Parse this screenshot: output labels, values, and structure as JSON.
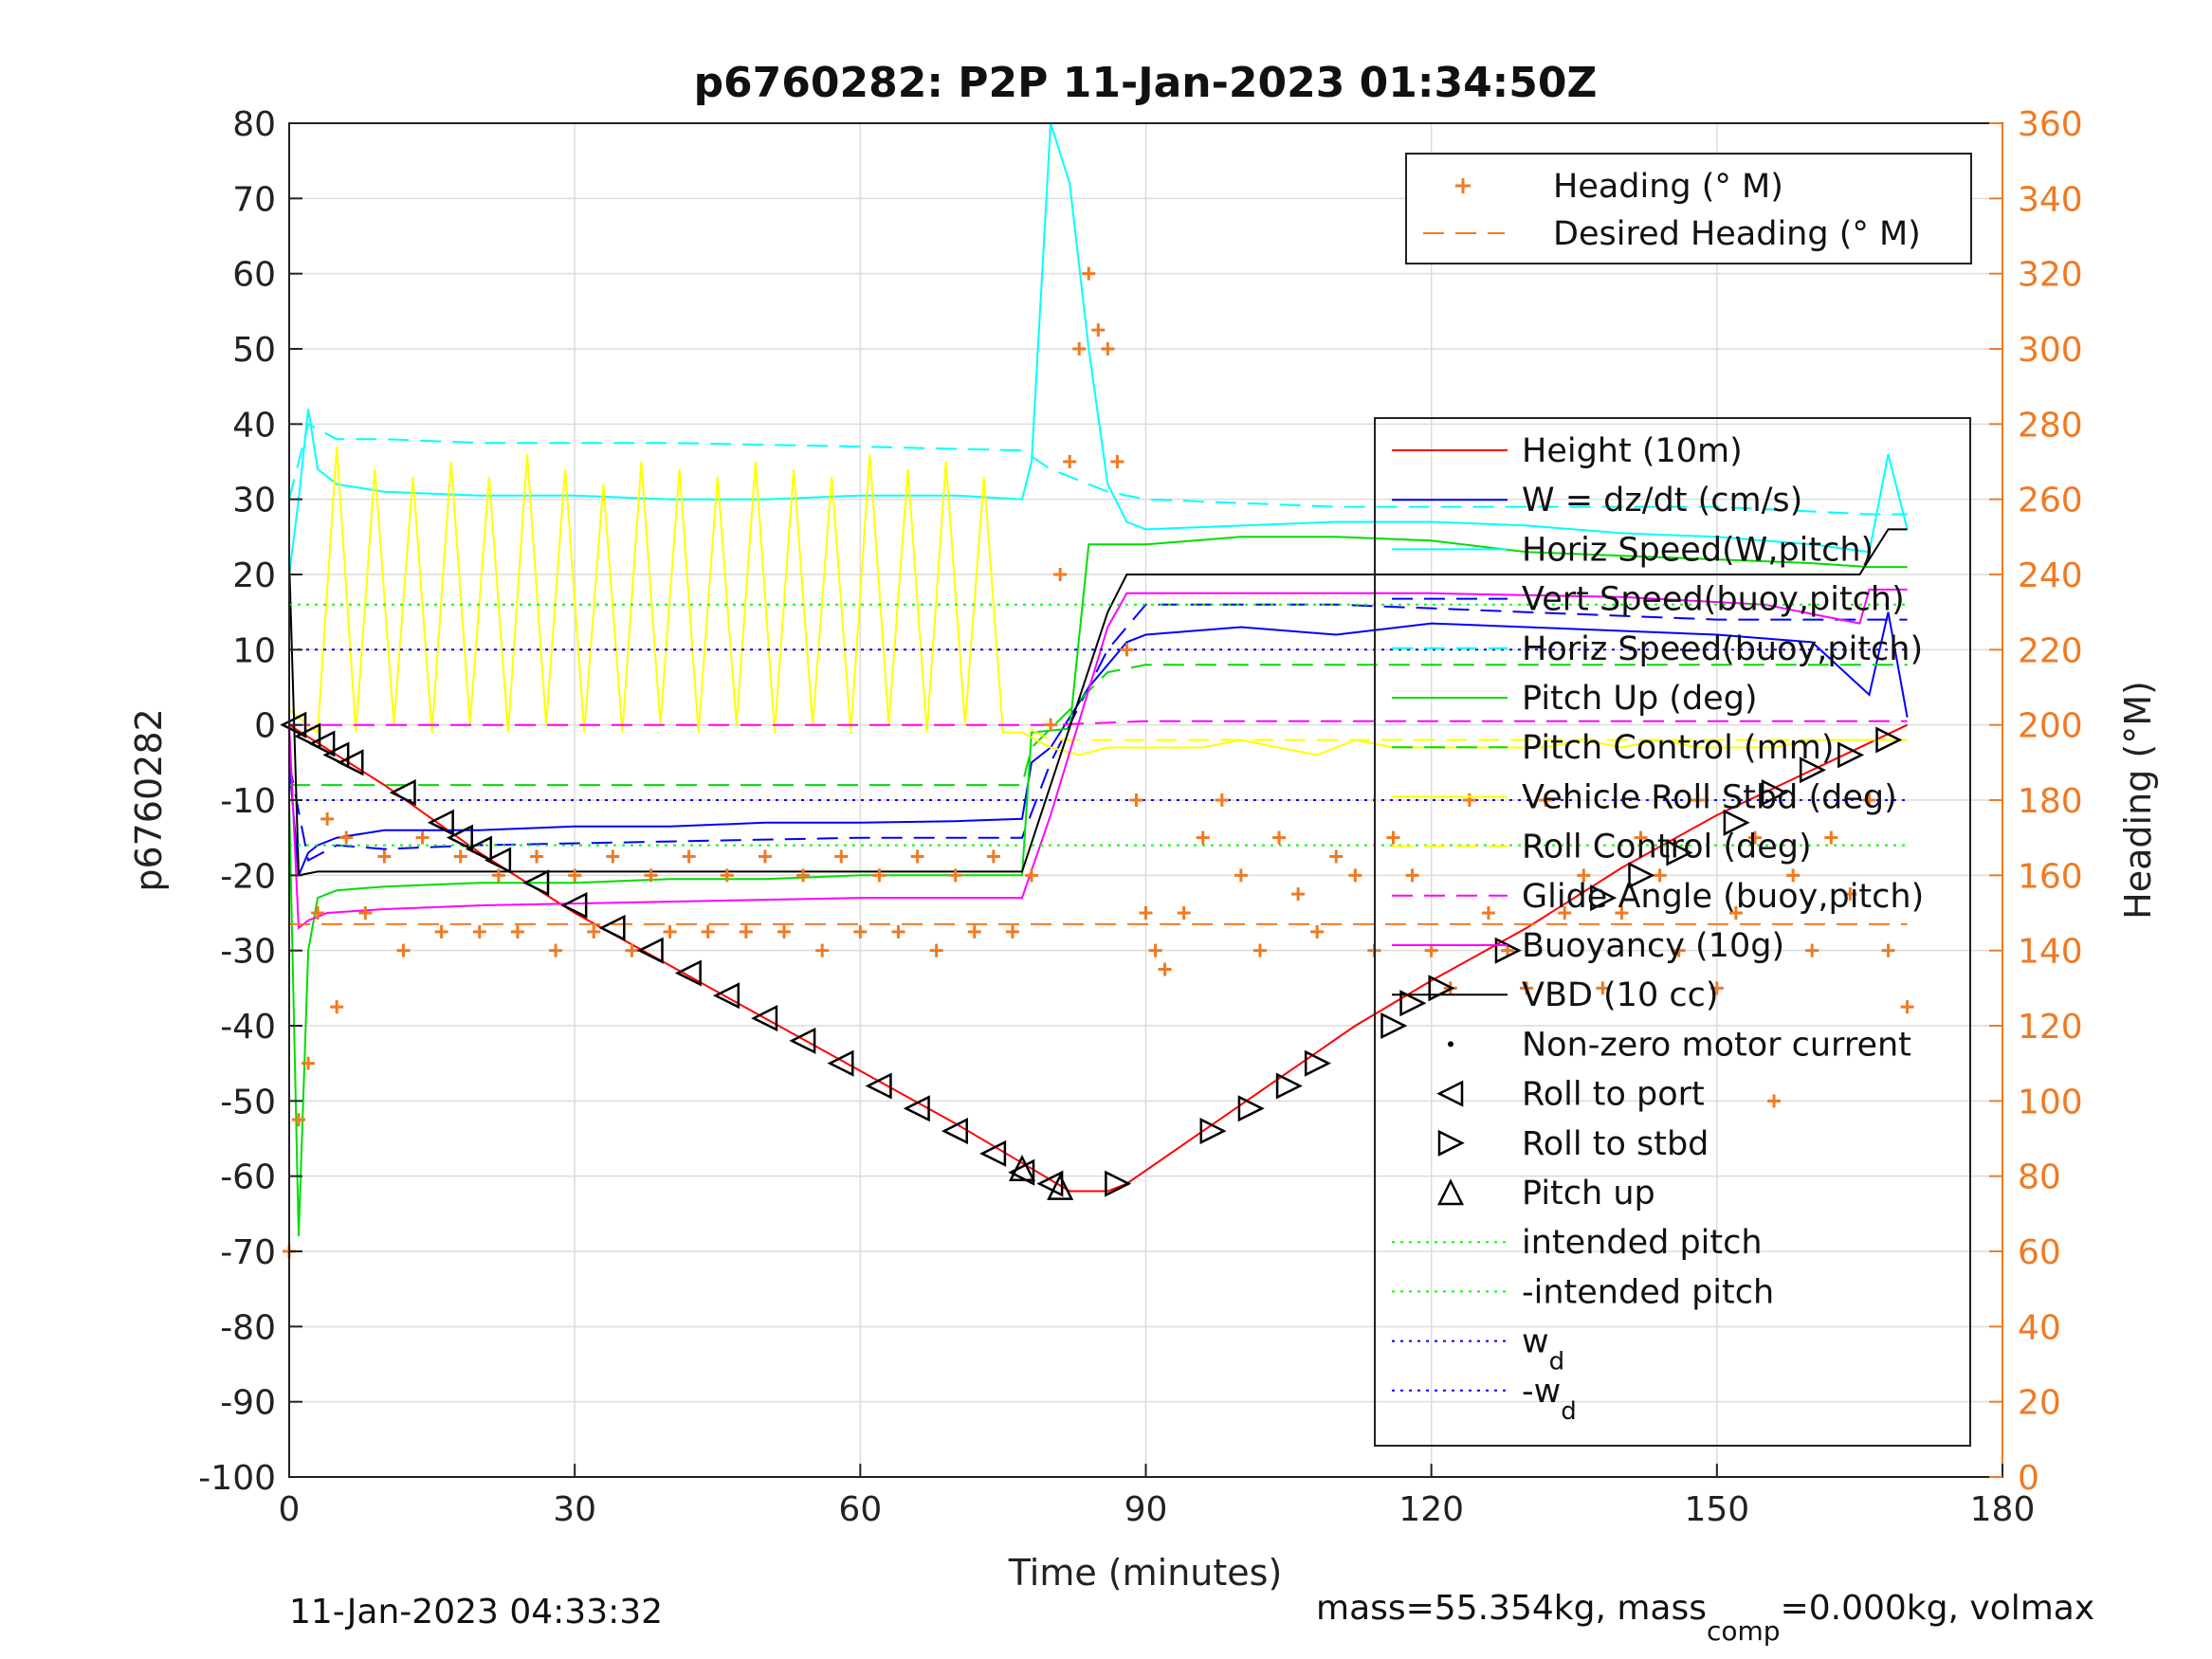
{
  "chart_data": {
    "type": "line",
    "title": "p6760282: P2P 11-Jan-2023 01:34:50Z",
    "xlabel": "Time (minutes)",
    "ylabel": "p6760282",
    "ylabel_right": "Heading (°M)",
    "xlim": [
      0,
      180
    ],
    "ylim": [
      -100,
      80
    ],
    "ylim_right": [
      0,
      360
    ],
    "x_ticks": [
      0,
      30,
      60,
      90,
      120,
      150,
      180
    ],
    "x_tick_labels": [
      "0",
      "30",
      "60",
      "90",
      "120",
      "150",
      "180"
    ],
    "y_ticks": [
      80,
      70,
      60,
      50,
      40,
      30,
      20,
      10,
      0,
      -10,
      -20,
      -30,
      -40,
      -50,
      -60,
      -70,
      -80,
      -90,
      -100
    ],
    "y_tick_labels": [
      "80",
      "70",
      "60",
      "50",
      "40",
      "30",
      "20",
      "10",
      "0",
      "-10",
      "-20",
      "-30",
      "-40",
      "-50",
      "-60",
      "-70",
      "-80",
      "-90",
      "-100"
    ],
    "y_ticks_right": [
      360,
      340,
      320,
      300,
      280,
      260,
      240,
      220,
      200,
      180,
      160,
      140,
      120,
      100,
      80,
      60,
      40,
      20,
      0
    ],
    "y_tick_labels_right": [
      "360",
      "340",
      "320",
      "300",
      "280",
      "260",
      "240",
      "220",
      "200",
      "180",
      "160",
      "140",
      "120",
      "100",
      "80",
      "60",
      "40",
      "20",
      "0"
    ],
    "grid": true,
    "legend_top": [
      {
        "label": "Heading (° M)",
        "color": "#f07a22",
        "style": "plus"
      },
      {
        "label": "Desired Heading (° M)",
        "color": "#f07a22",
        "style": "dashed"
      }
    ],
    "legend_main": [
      {
        "label": "Height (10m)",
        "color": "#ff0000",
        "style": "solid"
      },
      {
        "label": "W = dz/dt (cm/s)",
        "color": "#0000ff",
        "style": "solid"
      },
      {
        "label": "Horiz Speed(W,pitch)",
        "color": "#00ffff",
        "style": "solid"
      },
      {
        "label": "Vert Speed(buoy,pitch)",
        "color": "#0000ff",
        "style": "dashed"
      },
      {
        "label": "Horiz Speed(buoy,pitch)",
        "color": "#00ffff",
        "style": "dashed"
      },
      {
        "label": "Pitch Up (deg)",
        "color": "#00dd00",
        "style": "solid"
      },
      {
        "label": "Pitch Control (mm)",
        "color": "#00dd00",
        "style": "dashed"
      },
      {
        "label": "Vehicle Roll Stbd (deg)",
        "color": "#ffff00",
        "style": "solid"
      },
      {
        "label": "Roll Control (deg)",
        "color": "#ffff00",
        "style": "dashed"
      },
      {
        "label": "Glide Angle (buoy,pitch)",
        "color": "#ff00ff",
        "style": "dashed"
      },
      {
        "label": "Buoyancy (10g)",
        "color": "#ff00ff",
        "style": "solid"
      },
      {
        "label": "VBD (10 cc)",
        "color": "#000000",
        "style": "solid"
      },
      {
        "label": "Non-zero motor current",
        "color": "#000000",
        "style": "dot"
      },
      {
        "label": "Roll to port",
        "color": "#000000",
        "style": "tri-left"
      },
      {
        "label": "Roll to stbd",
        "color": "#000000",
        "style": "tri-right"
      },
      {
        "label": "Pitch up",
        "color": "#000000",
        "style": "tri-up"
      },
      {
        "label": "intended pitch",
        "color": "#00ff00",
        "style": "dotted"
      },
      {
        "label": "-intended pitch",
        "color": "#00ff00",
        "style": "dotted"
      },
      {
        "label": "w_d",
        "color": "#0000ff",
        "style": "dotted"
      },
      {
        "label": "-w_d",
        "color": "#0000ff",
        "style": "dotted"
      }
    ],
    "series": [
      {
        "name": "Height (10m)",
        "color": "#ff0000",
        "x": [
          0,
          10,
          20,
          30,
          40,
          50,
          60,
          70,
          78,
          82,
          86,
          88,
          96,
          104,
          112,
          120,
          130,
          140,
          150,
          160,
          170
        ],
        "y": [
          0,
          -8,
          -17,
          -25,
          -32,
          -39,
          -46,
          -53,
          -59,
          -62,
          -62,
          -61,
          -54,
          -47,
          -40,
          -34,
          -27,
          -19,
          -12,
          -6,
          0
        ]
      },
      {
        "name": "W = dz/dt (cm/s)",
        "color": "#0000ff",
        "x": [
          0,
          1,
          2,
          3,
          5,
          10,
          20,
          30,
          40,
          50,
          60,
          70,
          77,
          78,
          80,
          84,
          88,
          90,
          100,
          110,
          120,
          130,
          140,
          150,
          160,
          166,
          168,
          170
        ],
        "y": [
          -5,
          -20,
          -17,
          -16,
          -15,
          -14,
          -14,
          -13.5,
          -13.5,
          -13,
          -13,
          -12.8,
          -12.5,
          -5,
          -3,
          5,
          11,
          12,
          13,
          12,
          13.5,
          13,
          12.5,
          12,
          11,
          4,
          15,
          1
        ]
      },
      {
        "name": "Horiz Speed(W,pitch)",
        "color": "#00ffff",
        "x": [
          0,
          1,
          2,
          3,
          5,
          10,
          20,
          30,
          40,
          50,
          60,
          70,
          77,
          78,
          80,
          82,
          84,
          86,
          88,
          90,
          100,
          110,
          120,
          130,
          140,
          150,
          160,
          166,
          168,
          170
        ],
        "y": [
          20,
          30,
          42,
          34,
          32,
          31,
          30.5,
          30.5,
          30,
          30,
          30.5,
          30.5,
          30,
          35,
          80,
          72,
          50,
          32,
          27,
          26,
          26.5,
          27,
          27,
          26.5,
          25.5,
          25,
          24,
          23,
          36,
          26
        ]
      },
      {
        "name": "Vert Speed(buoy,pitch)",
        "color": "#0000ff",
        "dashed": true,
        "x": [
          0,
          2,
          5,
          10,
          20,
          40,
          60,
          77,
          80,
          86,
          90,
          110,
          130,
          150,
          166,
          170
        ],
        "y": [
          -5,
          -18,
          -16,
          -16.5,
          -16,
          -15.5,
          -15,
          -15,
          -5,
          10,
          16,
          16,
          15,
          14,
          14,
          14
        ]
      },
      {
        "name": "Horiz Speed(buoy,pitch)",
        "color": "#00ffff",
        "dashed": true,
        "x": [
          0,
          2,
          5,
          10,
          20,
          40,
          60,
          77,
          80,
          86,
          90,
          110,
          130,
          150,
          166,
          170
        ],
        "y": [
          30,
          40,
          38,
          38,
          37.5,
          37.5,
          37,
          36.5,
          34,
          31,
          30,
          29,
          29,
          29,
          28,
          28
        ]
      },
      {
        "name": "Pitch Up (deg)",
        "color": "#00dd00",
        "x": [
          0,
          1,
          2,
          3,
          5,
          10,
          20,
          30,
          40,
          50,
          60,
          70,
          77,
          78,
          82,
          84,
          86,
          88,
          90,
          100,
          110,
          120,
          130,
          140,
          150,
          160,
          166,
          170
        ],
        "y": [
          -10,
          -68,
          -30,
          -23,
          -22,
          -21.5,
          -21,
          -21,
          -20.5,
          -20.5,
          -20,
          -20,
          -20,
          -1,
          -0.5,
          24,
          24,
          24,
          24,
          25,
          25,
          24.5,
          23,
          22.5,
          22,
          21.5,
          21,
          21
        ]
      },
      {
        "name": "Pitch Control (mm)",
        "color": "#00dd00",
        "dashed": true,
        "x": [
          0,
          10,
          20,
          40,
          60,
          77,
          78,
          86,
          90,
          110,
          130,
          150,
          170
        ],
        "y": [
          -8,
          -8,
          -8,
          -8,
          -8,
          -8,
          -3,
          7,
          8,
          8,
          8,
          8,
          8
        ]
      },
      {
        "name": "Vehicle Roll Stbd (deg)",
        "color": "#ffff00",
        "x": [
          0,
          3,
          5,
          7,
          9,
          11,
          13,
          15,
          17,
          19,
          21,
          23,
          25,
          27,
          29,
          31,
          33,
          35,
          37,
          39,
          41,
          43,
          45,
          47,
          49,
          51,
          53,
          55,
          57,
          59,
          61,
          63,
          65,
          67,
          69,
          71,
          73,
          75,
          77,
          80,
          83,
          86,
          88,
          92,
          96,
          100,
          104,
          108,
          112,
          116,
          120,
          124,
          128,
          132,
          136,
          140,
          144,
          148,
          152,
          156,
          160,
          164,
          168,
          170
        ],
        "y": [
          2,
          -1,
          37,
          -1,
          34,
          0,
          33,
          -1,
          35,
          0,
          33,
          -1,
          36,
          0,
          34,
          -1,
          32,
          -1,
          35,
          0,
          34,
          -1,
          33,
          0,
          35,
          -1,
          34,
          0,
          33,
          -1,
          36,
          0,
          34,
          -1,
          35,
          0,
          33,
          -1,
          -1,
          -3,
          -4,
          -3,
          -3,
          -3,
          -3,
          -2,
          -3,
          -4,
          -2,
          -3,
          -3,
          -3,
          -3,
          -3,
          -2,
          -3,
          -2,
          -3,
          -3,
          -3,
          -2,
          -2,
          -2,
          -2
        ]
      },
      {
        "name": "Roll Control (deg)",
        "color": "#ffff00",
        "dashed": true,
        "x": [
          0,
          20,
          40,
          60,
          77,
          80,
          90,
          110,
          130,
          150,
          170
        ],
        "y": [
          0,
          0,
          0,
          0,
          0,
          -2,
          -2,
          -2,
          -2,
          -2,
          -2
        ]
      },
      {
        "name": "Glide Angle (buoy,pitch)",
        "color": "#ff00ff",
        "dashed": true,
        "x": [
          0,
          20,
          40,
          60,
          77,
          80,
          90,
          110,
          130,
          150,
          170
        ],
        "y": [
          0,
          0,
          0,
          0,
          0,
          0,
          0.5,
          0.5,
          0.5,
          0.5,
          0.5
        ]
      },
      {
        "name": "Buoyancy (10g)",
        "color": "#ff00ff",
        "x": [
          0,
          1,
          2,
          4,
          10,
          20,
          40,
          60,
          77,
          80,
          86,
          88,
          100,
          120,
          140,
          155,
          165,
          166,
          170
        ],
        "y": [
          0,
          -27,
          -26,
          -25,
          -24.5,
          -24,
          -23.5,
          -23,
          -23,
          -12,
          13,
          17.5,
          17.5,
          17.5,
          17,
          16,
          13.5,
          18,
          18
        ]
      },
      {
        "name": "VBD (10 cc)",
        "color": "#000000",
        "x": [
          0,
          1,
          3,
          10,
          20,
          40,
          60,
          77,
          80,
          86,
          88,
          100,
          120,
          140,
          160,
          165,
          168,
          170
        ],
        "y": [
          22,
          -20,
          -19.5,
          -19.5,
          -19.5,
          -19.5,
          -19.5,
          -19.5,
          -8,
          15,
          20,
          20,
          20,
          20,
          20,
          20,
          26,
          26
        ]
      },
      {
        "name": "intended pitch",
        "color": "#00ff00",
        "dotted": true,
        "x": [
          0,
          170
        ],
        "y": [
          16,
          16
        ]
      },
      {
        "name": "-intended pitch",
        "color": "#00ff00",
        "dotted": true,
        "x": [
          0,
          170
        ],
        "y": [
          -16,
          -16
        ]
      },
      {
        "name": "w_d",
        "color": "#0000ff",
        "dotted": true,
        "x": [
          0,
          170
        ],
        "y": [
          10,
          10
        ]
      },
      {
        "name": "-w_d",
        "color": "#0000ff",
        "dotted": true,
        "x": [
          0,
          170
        ],
        "y": [
          -10,
          -10
        ]
      }
    ],
    "markers_roll_port": {
      "x": [
        0.5,
        2,
        3.5,
        5,
        6.5,
        12,
        16,
        18,
        20,
        22,
        26,
        30,
        34,
        38,
        42,
        46,
        50,
        54,
        58,
        62,
        66,
        70,
        74,
        77,
        80
      ],
      "y": [
        0,
        -1.5,
        -2.5,
        -4,
        -5,
        -9,
        -13,
        -15,
        -16.5,
        -18,
        -21,
        -24,
        -27,
        -30,
        -33,
        -36,
        -39,
        -42,
        -45,
        -48,
        -51,
        -54,
        -57,
        -59.5,
        -61
      ]
    },
    "markers_roll_stbd": {
      "x": [
        87,
        97,
        101,
        105,
        108,
        116,
        118,
        121,
        128,
        138,
        142,
        146,
        152,
        156,
        160,
        164,
        168
      ],
      "y": [
        -61,
        -54,
        -51,
        -48,
        -45,
        -40,
        -37,
        -35,
        -30,
        -23,
        -20,
        -17,
        -13,
        -9,
        -6,
        -4,
        -2
      ]
    },
    "markers_pitch_up": {
      "x": [
        77,
        81
      ],
      "y": [
        -59,
        -61.5
      ]
    },
    "heading_right": {
      "x": [
        0,
        1,
        2,
        3,
        4,
        5,
        6,
        8,
        10,
        12,
        14,
        16,
        18,
        20,
        22,
        24,
        26,
        28,
        30,
        32,
        34,
        36,
        38,
        40,
        42,
        44,
        46,
        48,
        50,
        52,
        54,
        56,
        58,
        60,
        62,
        64,
        66,
        68,
        70,
        72,
        74,
        76,
        78,
        80,
        81,
        82,
        83,
        84,
        85,
        86,
        87,
        88,
        89,
        90,
        91,
        92,
        94,
        96,
        98,
        100,
        102,
        104,
        106,
        108,
        110,
        112,
        114,
        116,
        118,
        120,
        122,
        124,
        126,
        128,
        130,
        132,
        134,
        136,
        138,
        140,
        142,
        144,
        146,
        148,
        150,
        152,
        154,
        156,
        158,
        160,
        162,
        164,
        166,
        168,
        170
      ],
      "y": [
        60,
        95,
        110,
        150,
        175,
        125,
        170,
        150,
        165,
        140,
        170,
        145,
        165,
        145,
        160,
        145,
        165,
        140,
        160,
        145,
        165,
        140,
        160,
        145,
        165,
        145,
        160,
        145,
        165,
        145,
        160,
        140,
        165,
        145,
        160,
        145,
        165,
        140,
        160,
        145,
        165,
        145,
        160,
        200,
        240,
        270,
        300,
        320,
        305,
        300,
        270,
        220,
        180,
        150,
        140,
        135,
        150,
        170,
        180,
        160,
        140,
        170,
        155,
        145,
        165,
        160,
        140,
        170,
        160,
        140,
        130,
        180,
        150,
        140,
        130,
        180,
        150,
        160,
        130,
        150,
        170,
        160,
        140,
        180,
        130,
        150,
        170,
        100,
        160,
        140,
        170,
        155,
        180,
        140,
        125
      ]
    },
    "desired_heading_right": {
      "x": [
        0,
        80,
        84,
        90,
        170
      ],
      "y": [
        147,
        147,
        147,
        147,
        147
      ]
    }
  },
  "footer": {
    "left": "11-Jan-2023 04:33:32",
    "right_prefix": "mass=55.354kg, mass",
    "right_sub": "comp",
    "right_suffix": "=0.000kg, volmax"
  }
}
